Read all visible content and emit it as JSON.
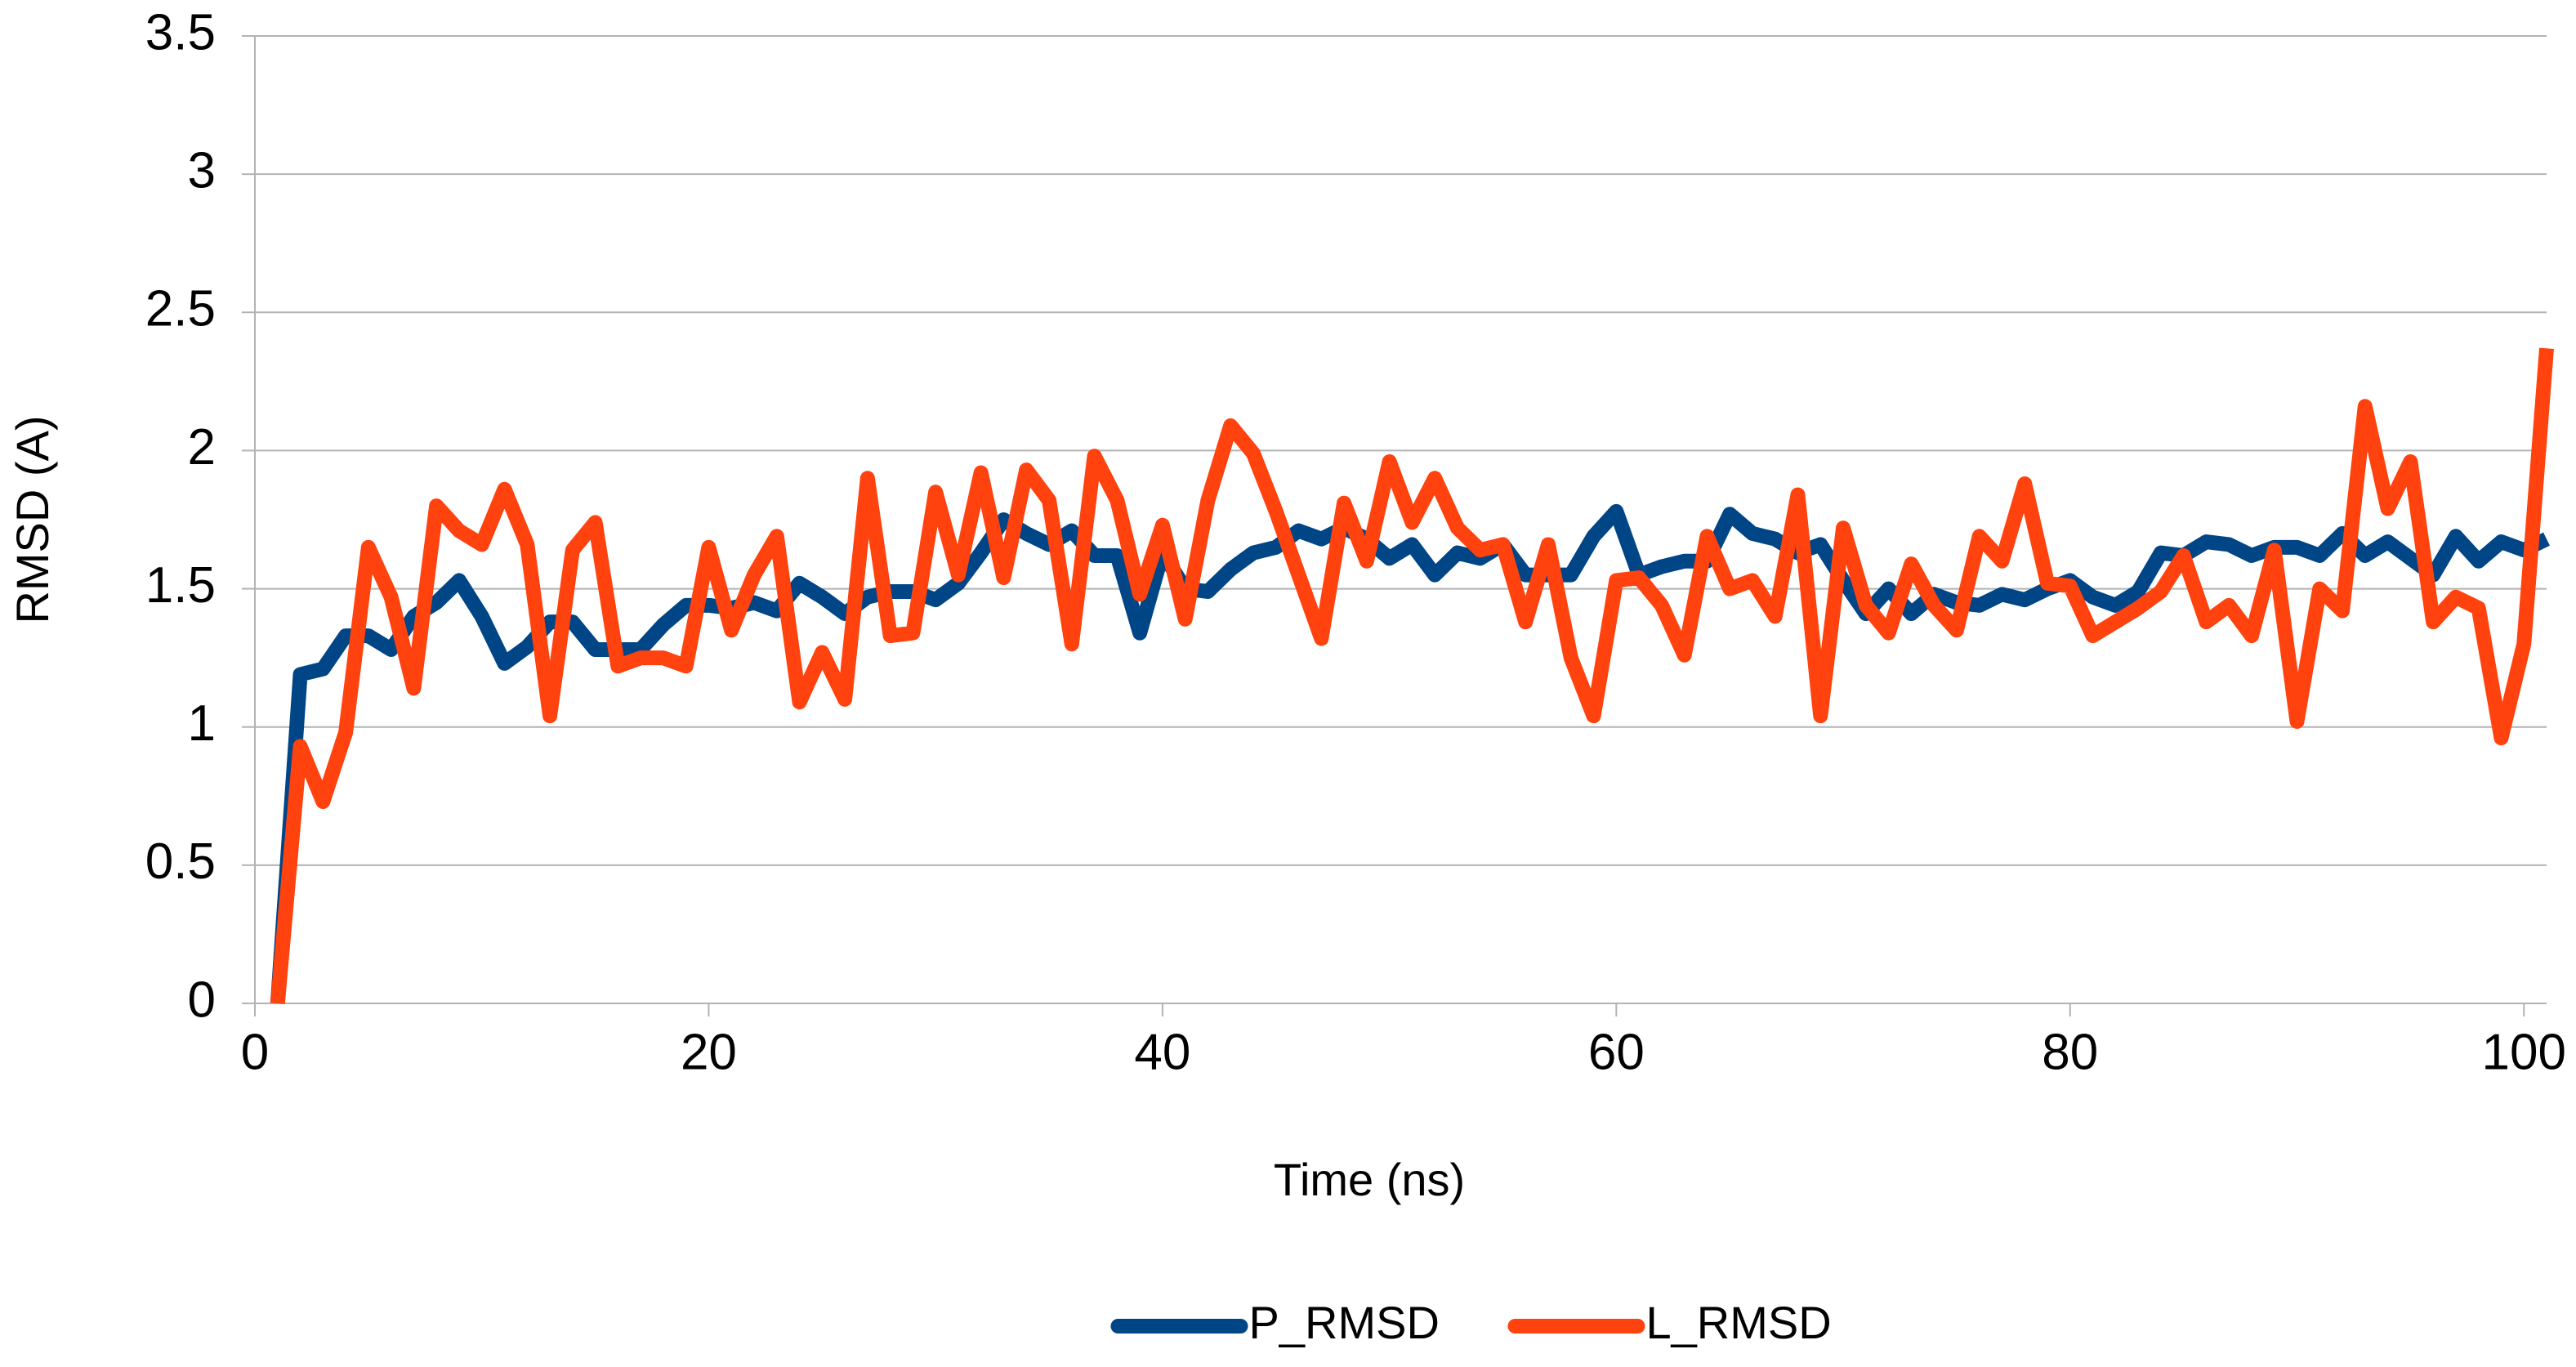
{
  "chart_data": {
    "type": "line",
    "x_label": "Time (ns)",
    "y_label": "RMSD (A)",
    "x": [
      1,
      2,
      3,
      4,
      5,
      6,
      7,
      8,
      9,
      10,
      11,
      12,
      13,
      14,
      15,
      16,
      17,
      18,
      19,
      20,
      21,
      22,
      23,
      24,
      25,
      26,
      27,
      28,
      29,
      30,
      31,
      32,
      33,
      34,
      35,
      36,
      37,
      38,
      39,
      40,
      41,
      42,
      43,
      44,
      45,
      46,
      47,
      48,
      49,
      50,
      51,
      52,
      53,
      54,
      55,
      56,
      57,
      58,
      59,
      60,
      61,
      62,
      63,
      64,
      65,
      66,
      67,
      68,
      69,
      70,
      71,
      72,
      73,
      74,
      75,
      76,
      77,
      78,
      79,
      80,
      81,
      82,
      83,
      84,
      85,
      86,
      87,
      88,
      89,
      90,
      91,
      92,
      93,
      94,
      95,
      96,
      97,
      98,
      99,
      100,
      101
    ],
    "series": [
      {
        "name": "P_RMSD",
        "color": "#004586",
        "values": [
          0,
          1.19,
          1.21,
          1.33,
          1.33,
          1.28,
          1.4,
          1.45,
          1.53,
          1.4,
          1.23,
          1.29,
          1.38,
          1.38,
          1.28,
          1.28,
          1.28,
          1.37,
          1.44,
          1.44,
          1.43,
          1.45,
          1.42,
          1.52,
          1.47,
          1.41,
          1.47,
          1.49,
          1.49,
          1.46,
          1.52,
          1.63,
          1.75,
          1.7,
          1.66,
          1.71,
          1.62,
          1.62,
          1.34,
          1.63,
          1.5,
          1.49,
          1.57,
          1.63,
          1.65,
          1.71,
          1.68,
          1.72,
          1.68,
          1.61,
          1.66,
          1.55,
          1.63,
          1.61,
          1.66,
          1.55,
          1.55,
          1.55,
          1.69,
          1.78,
          1.55,
          1.58,
          1.6,
          1.6,
          1.77,
          1.7,
          1.68,
          1.63,
          1.66,
          1.53,
          1.41,
          1.5,
          1.41,
          1.48,
          1.45,
          1.44,
          1.48,
          1.46,
          1.5,
          1.53,
          1.47,
          1.44,
          1.49,
          1.63,
          1.62,
          1.67,
          1.66,
          1.62,
          1.65,
          1.65,
          1.62,
          1.7,
          1.62,
          1.67,
          1.61,
          1.55,
          1.69,
          1.6,
          1.67,
          1.64,
          1.68
        ]
      },
      {
        "name": "L_RMSD",
        "color": "#ff420e",
        "values": [
          0,
          0.93,
          0.73,
          0.98,
          1.65,
          1.47,
          1.14,
          1.8,
          1.71,
          1.66,
          1.86,
          1.66,
          1.04,
          1.64,
          1.74,
          1.22,
          1.25,
          1.25,
          1.22,
          1.65,
          1.35,
          1.55,
          1.69,
          1.09,
          1.27,
          1.1,
          1.9,
          1.33,
          1.34,
          1.85,
          1.55,
          1.92,
          1.54,
          1.93,
          1.82,
          1.3,
          1.98,
          1.82,
          1.48,
          1.73,
          1.39,
          1.82,
          2.09,
          1.99,
          1.78,
          1.55,
          1.32,
          1.81,
          1.6,
          1.96,
          1.74,
          1.9,
          1.72,
          1.64,
          1.66,
          1.38,
          1.66,
          1.25,
          1.04,
          1.53,
          1.54,
          1.44,
          1.26,
          1.69,
          1.5,
          1.53,
          1.4,
          1.84,
          1.04,
          1.72,
          1.44,
          1.34,
          1.59,
          1.44,
          1.35,
          1.69,
          1.6,
          1.88,
          1.52,
          1.51,
          1.33,
          1.38,
          1.43,
          1.49,
          1.62,
          1.38,
          1.44,
          1.33,
          1.64,
          1.02,
          1.5,
          1.42,
          2.16,
          1.79,
          1.96,
          1.38,
          1.47,
          1.43,
          0.96,
          1.3,
          2.37
        ]
      }
    ],
    "xlim": [
      0,
      101
    ],
    "xticks": [
      0,
      20,
      40,
      60,
      80,
      100
    ],
    "ylim": [
      0,
      3.5
    ],
    "yticks": [
      0,
      0.5,
      1,
      1.5,
      2,
      2.5,
      3,
      3.5
    ],
    "grid": true,
    "legend": "bottom"
  }
}
